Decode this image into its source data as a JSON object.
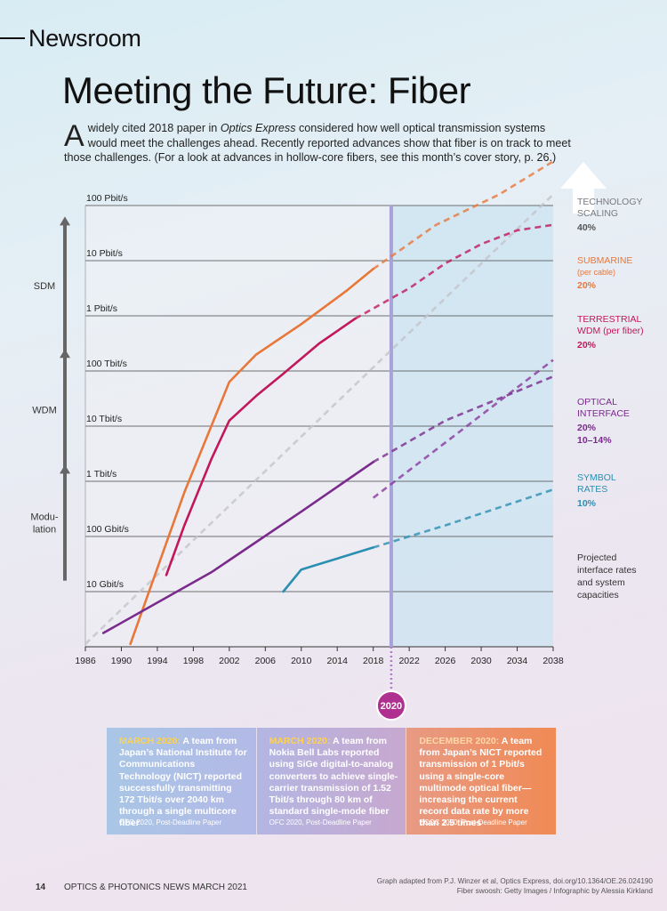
{
  "header": {
    "section": "Newsroom",
    "title": "Meeting the Future: Fiber"
  },
  "intro": {
    "dropcap": "A",
    "text_before": " widely cited 2018 paper in ",
    "journal": "Optics Express",
    "text_after": " considered how well optical transmission systems would meet the challenges ahead. Recently reported advances show that fiber is on track to meet those challenges. (For a look at advances in hollow-core fibers, see this month’s cover story, p. 26.)"
  },
  "chart_data": {
    "type": "line",
    "title": "Meeting the Future: Fiber",
    "xlabel": "",
    "ylabel": "",
    "xlim": [
      1986,
      2038
    ],
    "y_scale": "log",
    "ylim_bit_per_s": [
      1000000000.0,
      1e+17
    ],
    "x_ticks": [
      "1986",
      "1990",
      "1994",
      "1998",
      "2002",
      "2006",
      "2010",
      "2014",
      "2018",
      "2022",
      "2026",
      "2030",
      "2034",
      "2038"
    ],
    "y_ticks": [
      {
        "label": "100 Pbit/s",
        "log10": 17
      },
      {
        "label": "10 Pbit/s",
        "log10": 16
      },
      {
        "label": "1 Pbit/s",
        "log10": 15
      },
      {
        "label": "100 Tbit/s",
        "log10": 14
      },
      {
        "label": "10 Tbit/s",
        "log10": 13
      },
      {
        "label": "1 Tbit/s",
        "log10": 12
      },
      {
        "label": "100 Gbit/s",
        "log10": 11
      },
      {
        "label": "10 Gbit/s",
        "log10": 10
      }
    ],
    "marker_year": 2020,
    "marker_label": "2020",
    "projection_region": [
      2020,
      2038
    ],
    "left_arrows": [
      {
        "label": "SDM",
        "from_log10": 14.3,
        "to_log10": 16.8
      },
      {
        "label": "WDM",
        "from_log10": 12.2,
        "to_log10": 14.4
      },
      {
        "label": "Modu-\nlation",
        "from_log10": 10.2,
        "to_log10": 12.3
      }
    ],
    "series": [
      {
        "name": "TECHNOLOGY SCALING",
        "rate": "40%",
        "color": "#c3c3c8",
        "points": [
          [
            1986,
            9.05
          ],
          [
            2038,
            17.2
          ]
        ],
        "projected_from": 1986
      },
      {
        "name": "SUBMARINE",
        "sub": "(per cable)",
        "rate": "20%",
        "color": "#e8773a",
        "points": [
          [
            1991,
            9.05
          ],
          [
            1997,
            11.8
          ],
          [
            2002,
            13.8
          ],
          [
            2005,
            14.3
          ],
          [
            2010,
            14.85
          ],
          [
            2015,
            15.45
          ],
          [
            2018,
            15.85
          ],
          [
            2025,
            16.65
          ],
          [
            2032,
            17.2
          ],
          [
            2038,
            17.8
          ]
        ],
        "projected_from": 2018
      },
      {
        "name": "TERRESTRIAL WDM",
        "sub": "(per fiber)",
        "rate": "20%",
        "color": "#c2185b",
        "points": [
          [
            1995,
            10.3
          ],
          [
            1997,
            11.2
          ],
          [
            2000,
            12.4
          ],
          [
            2002,
            13.1
          ],
          [
            2005,
            13.55
          ],
          [
            2008,
            13.95
          ],
          [
            2012,
            14.5
          ],
          [
            2016,
            14.95
          ],
          [
            2022,
            15.5
          ],
          [
            2026,
            15.95
          ],
          [
            2030,
            16.3
          ],
          [
            2034,
            16.55
          ],
          [
            2038,
            16.65
          ]
        ],
        "projected_from": 2016
      },
      {
        "name": "OPTICAL INTERFACE",
        "rate": "20%",
        "color": "#8a3a9c",
        "points": [
          [
            2018,
            11.7
          ],
          [
            2038,
            14.2
          ]
        ],
        "projected_from": 2018
      },
      {
        "name": "OPTICAL INTERFACE",
        "rate": "10–14%",
        "color": "#7a2a8c",
        "points": [
          [
            1988,
            9.25
          ],
          [
            2000,
            10.35
          ],
          [
            2010,
            11.45
          ],
          [
            2018,
            12.35
          ],
          [
            2026,
            13.1
          ],
          [
            2038,
            13.9
          ]
        ],
        "projected_from": 2018
      },
      {
        "name": "SYMBOL RATES",
        "rate": "10%",
        "color": "#2a8fb2",
        "points": [
          [
            2008,
            10.0
          ],
          [
            2010,
            10.4
          ],
          [
            2018,
            10.8
          ],
          [
            2026,
            11.2
          ],
          [
            2038,
            11.85
          ]
        ],
        "projected_from": 2018
      }
    ],
    "right_labels": [
      {
        "lines": [
          "TECHNOLOGY",
          "SCALING"
        ],
        "rate": "40%",
        "color": "#7a7a80",
        "rate_color": "#555"
      },
      {
        "lines": [
          "SUBMARINE",
          "(per cable)"
        ],
        "rate": "20%",
        "color": "#e8773a",
        "rate_color": "#e8773a"
      },
      {
        "lines": [
          "TERRESTRIAL",
          "WDM (per fiber)"
        ],
        "rate": "20%",
        "color": "#c2185b",
        "rate_color": "#c2185b"
      },
      {
        "lines": [
          "OPTICAL",
          "INTERFACE"
        ],
        "rate": "20%",
        "rate2": "10–14%",
        "color": "#7a2a8c",
        "rate_color": "#7a2a8c"
      },
      {
        "lines": [
          "SYMBOL",
          "RATES"
        ],
        "rate": "10%",
        "color": "#2a8fb2",
        "rate_color": "#2a8fb2"
      }
    ],
    "projection_note": [
      "Projected",
      "interface rates",
      "and system",
      "capacities"
    ]
  },
  "cards": [
    {
      "highlight": "MARCH 2020:",
      "text": " A team from Japan’s National Institute for Communications Technology (NICT) reported successfully transmitting 172 Tbit/s over 2040 km through a single multicore fiber",
      "source": "OFC 2020, Post-Deadline Paper"
    },
    {
      "highlight": "MARCH 2020:",
      "text": " A team from Nokia Bell Labs reported using SiGe digital-to-analog converters to achieve single-carrier transmission of 1.52 Tbit/s through 80 km of standard single-mode fiber",
      "source": "OFC 2020, Post-Deadline Paper"
    },
    {
      "highlight": "DECEMBER 2020:",
      "text": " A team from Japan’s NICT reported transmission of 1 Pbit/s using a single-core multimode optical fiber—increasing the current record data rate by more than 2.5 times",
      "source": "ECOC 2020, Post-Deadline Paper"
    }
  ],
  "footer": {
    "page": "14",
    "publication": "OPTICS & PHOTONICS NEWS  MARCH 2021",
    "credit_line1": "Graph adapted from P.J. Winzer et al, Optics Express, doi.org/10.1364/OE.26.024190",
    "credit_line2": "Fiber swoosh: Getty Images / Infographic by Alessia Kirkland"
  }
}
